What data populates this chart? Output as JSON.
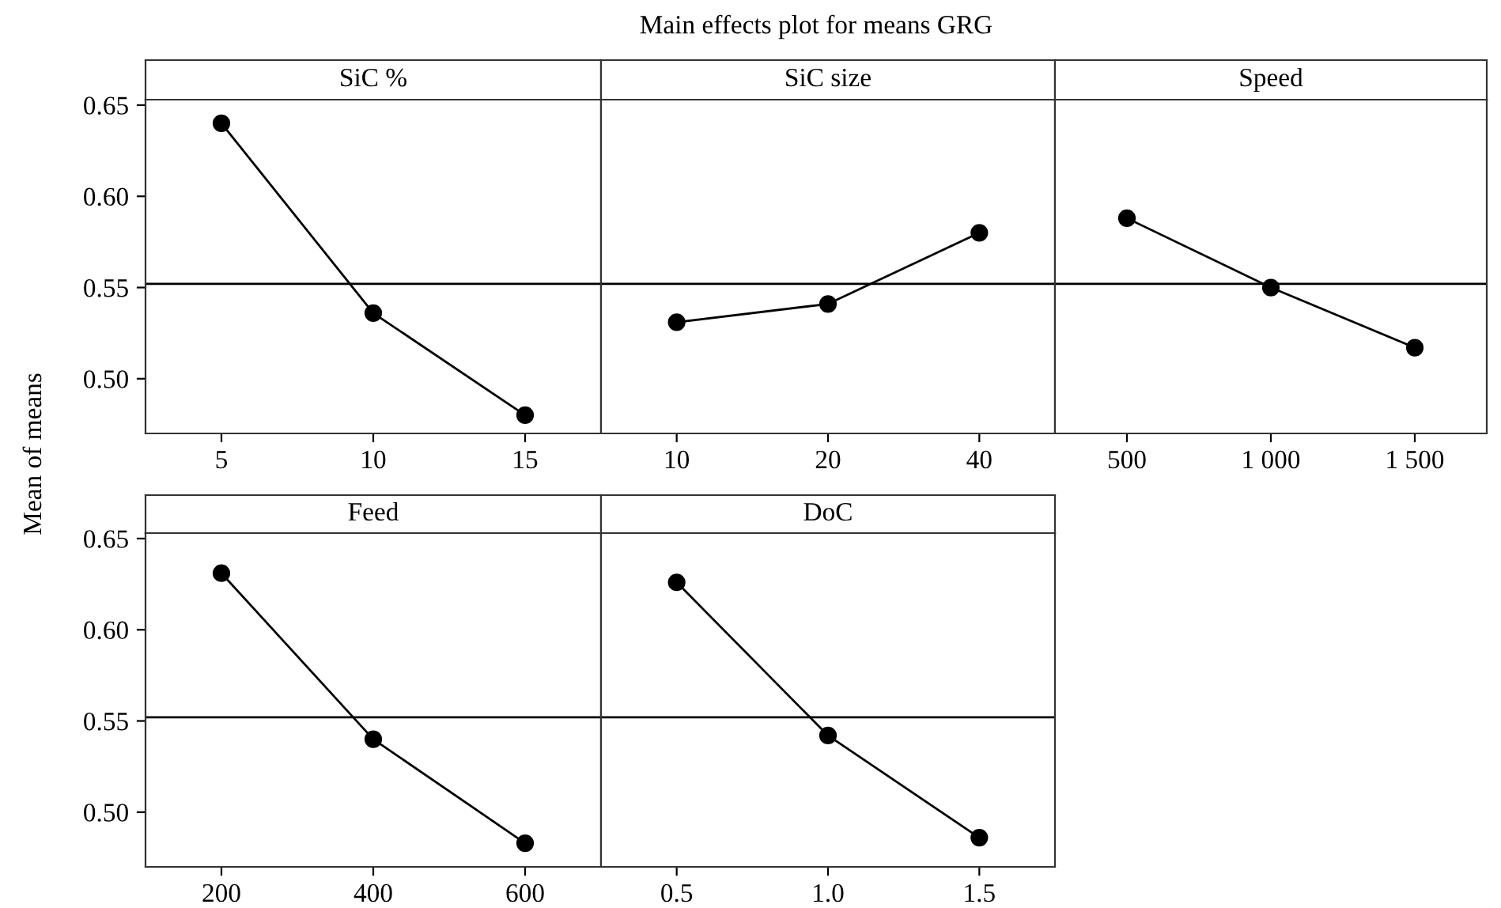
{
  "chart_data": [
    {
      "type": "line",
      "title": "SiC %",
      "ylabel": "Mean of means",
      "annotations": [
        "Main effects plot for means GRG"
      ],
      "categories": [
        "5",
        "10",
        "15"
      ],
      "values": [
        0.64,
        0.536,
        0.48
      ],
      "color": "#000000",
      "marker": "circle",
      "line_style": "solid",
      "ylim": [
        0.47,
        0.653
      ],
      "yticks": [
        {
          "value": 0.5,
          "label": "0.50"
        },
        {
          "value": 0.55,
          "label": "0.55"
        },
        {
          "value": 0.6,
          "label": "0.60"
        },
        {
          "value": 0.65,
          "label": "0.65"
        }
      ],
      "ref_lines": [
        {
          "axis": "y",
          "value": 0.552,
          "color": "#000000"
        }
      ],
      "grid": false
    },
    {
      "type": "line",
      "title": "SiC size",
      "categories": [
        "10",
        "20",
        "40"
      ],
      "values": [
        0.531,
        0.541,
        0.58
      ],
      "color": "#000000",
      "marker": "circle",
      "line_style": "solid",
      "ylim": [
        0.47,
        0.653
      ],
      "tick_labels": "x",
      "ref_lines": [
        {
          "axis": "y",
          "value": 0.552,
          "color": "#000000"
        }
      ],
      "grid": false
    },
    {
      "type": "line",
      "title": "Speed",
      "categories": [
        "500",
        "1 000",
        "1 500"
      ],
      "values": [
        0.588,
        0.55,
        0.517
      ],
      "color": "#000000",
      "marker": "circle",
      "line_style": "solid",
      "ylim": [
        0.47,
        0.653
      ],
      "tick_labels": "x",
      "ref_lines": [
        {
          "axis": "y",
          "value": 0.552,
          "color": "#000000"
        }
      ],
      "grid": false
    },
    {
      "type": "line",
      "title": "Feed",
      "categories": [
        "200",
        "400",
        "600"
      ],
      "values": [
        0.631,
        0.54,
        0.483
      ],
      "color": "#000000",
      "marker": "circle",
      "line_style": "solid",
      "ylim": [
        0.47,
        0.653
      ],
      "yticks": [
        {
          "value": 0.5,
          "label": "0.50"
        },
        {
          "value": 0.55,
          "label": "0.55"
        },
        {
          "value": 0.6,
          "label": "0.60"
        },
        {
          "value": 0.65,
          "label": "0.65"
        }
      ],
      "ref_lines": [
        {
          "axis": "y",
          "value": 0.552,
          "color": "#000000"
        }
      ],
      "grid": false
    },
    {
      "type": "line",
      "title": "DoC",
      "categories": [
        "0.5",
        "1.0",
        "1.5"
      ],
      "values": [
        0.626,
        0.542,
        0.486
      ],
      "color": "#000000",
      "marker": "circle",
      "line_style": "solid",
      "ylim": [
        0.47,
        0.653
      ],
      "tick_labels": "x",
      "ref_lines": [
        {
          "axis": "y",
          "value": 0.552,
          "color": "#000000"
        }
      ],
      "grid": false
    }
  ]
}
